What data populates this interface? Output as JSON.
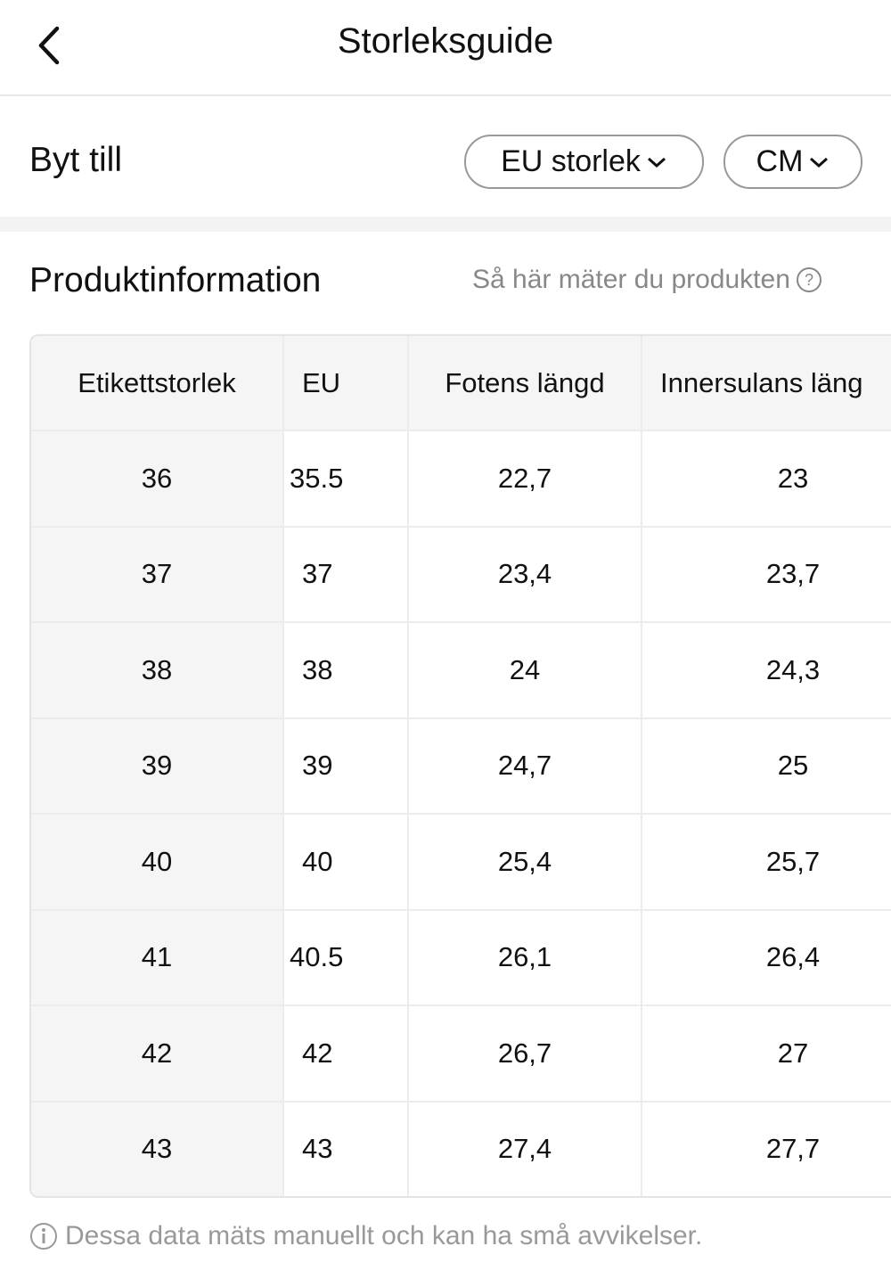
{
  "header": {
    "title": "Storleksguide"
  },
  "switch": {
    "label": "Byt till",
    "buttons": [
      "EU storlek",
      "CM"
    ]
  },
  "section": {
    "title": "Produktinformation",
    "help": "Så här mäter du produkten"
  },
  "table": {
    "headers": [
      "Etikettstorlek",
      "EU",
      "Fotens längd",
      "Innersulans läng"
    ],
    "rows": [
      [
        "36",
        "35.5",
        "22,7",
        "23"
      ],
      [
        "37",
        "37",
        "23,4",
        "23,7"
      ],
      [
        "38",
        "38",
        "24",
        "24,3"
      ],
      [
        "39",
        "39",
        "24,7",
        "25"
      ],
      [
        "40",
        "40",
        "25,4",
        "25,7"
      ],
      [
        "41",
        "40.5",
        "26,1",
        "26,4"
      ],
      [
        "42",
        "42",
        "26,7",
        "27"
      ],
      [
        "43",
        "43",
        "27,4",
        "27,7"
      ]
    ]
  },
  "footnote": "Dessa data mäts manuellt och kan ha små avvikelser."
}
